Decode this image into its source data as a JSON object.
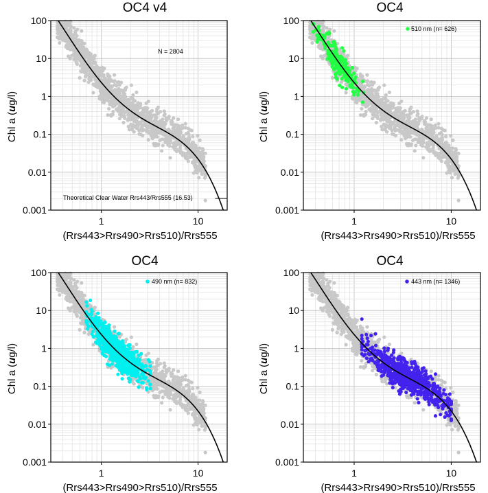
{
  "chart_data": [
    {
      "type": "scatter",
      "title": "OC4 v4",
      "xlabel": "(Rrs443>Rrs490>Rrs510)/Rrs555",
      "ylabel": "Chl a (ug/l)",
      "xscale": "log",
      "yscale": "log",
      "xlim": [
        0.3,
        20
      ],
      "ylim": [
        0.001,
        100
      ],
      "x_ticks": [
        "1",
        "10"
      ],
      "y_ticks": [
        "100",
        "10",
        "1",
        "0.1",
        "0.01",
        "0.001"
      ],
      "grid": true,
      "annotations": [
        "N = 2804",
        "Theoretical Clear Water Rrs443/Rrs555 (16.53)"
      ],
      "clear_water_ratio": 16.53,
      "series": [
        {
          "role": "all",
          "color": "#c8c8c8",
          "x_range": [
            0.35,
            12
          ],
          "n": 2804
        },
        {
          "role": "model-curve",
          "color": "#000000"
        }
      ]
    },
    {
      "type": "scatter",
      "title": "OC4",
      "xlabel": "(Rrs443>Rrs490>Rrs510)/Rrs555",
      "ylabel": "Chl a (ug/l)",
      "xscale": "log",
      "yscale": "log",
      "xlim": [
        0.3,
        20
      ],
      "ylim": [
        0.001,
        100
      ],
      "x_ticks": [
        "1",
        "10"
      ],
      "y_ticks": [
        "100",
        "10",
        "1",
        "0.1",
        "0.01",
        "0.001"
      ],
      "grid": true,
      "legend_position": "top-right",
      "series": [
        {
          "role": "all",
          "color": "#c8c8c8",
          "x_range": [
            0.35,
            12
          ]
        },
        {
          "name": "510 nm (n= 626)",
          "color": "#22ff44",
          "x_range": [
            0.38,
            1.3
          ],
          "n": 626
        },
        {
          "role": "model-curve",
          "color": "#000000"
        }
      ]
    },
    {
      "type": "scatter",
      "title": "OC4",
      "xlabel": "(Rrs443>Rrs490>Rrs510)/Rrs555",
      "ylabel": "Chl a (ug/l)",
      "xscale": "log",
      "yscale": "log",
      "xlim": [
        0.3,
        20
      ],
      "ylim": [
        0.001,
        100
      ],
      "x_ticks": [
        "1",
        "10"
      ],
      "y_ticks": [
        "100",
        "10",
        "1",
        "0.1",
        "0.01",
        "0.001"
      ],
      "grid": true,
      "legend_position": "top-right",
      "series": [
        {
          "role": "all",
          "color": "#c8c8c8",
          "x_range": [
            0.35,
            12
          ]
        },
        {
          "name": "490 nm (n= 832)",
          "color": "#00f0f0",
          "x_range": [
            0.7,
            3.2
          ],
          "n": 832
        },
        {
          "role": "model-curve",
          "color": "#000000"
        }
      ]
    },
    {
      "type": "scatter",
      "title": "OC4",
      "xlabel": "(Rrs443>Rrs490>Rrs510)/Rrs555",
      "ylabel": "Chl a (ug/l)",
      "xscale": "log",
      "yscale": "log",
      "xlim": [
        0.3,
        20
      ],
      "ylim": [
        0.001,
        100
      ],
      "x_ticks": [
        "1",
        "10"
      ],
      "y_ticks": [
        "100",
        "10",
        "1",
        "0.1",
        "0.01",
        "0.001"
      ],
      "grid": true,
      "legend_position": "top-right",
      "series": [
        {
          "role": "all",
          "color": "#c8c8c8",
          "x_range": [
            0.35,
            12
          ]
        },
        {
          "name": "443 nm (n= 1346)",
          "color": "#4422ee",
          "x_range": [
            1.2,
            10
          ],
          "n": 1346
        },
        {
          "role": "model-curve",
          "color": "#000000"
        }
      ]
    }
  ]
}
